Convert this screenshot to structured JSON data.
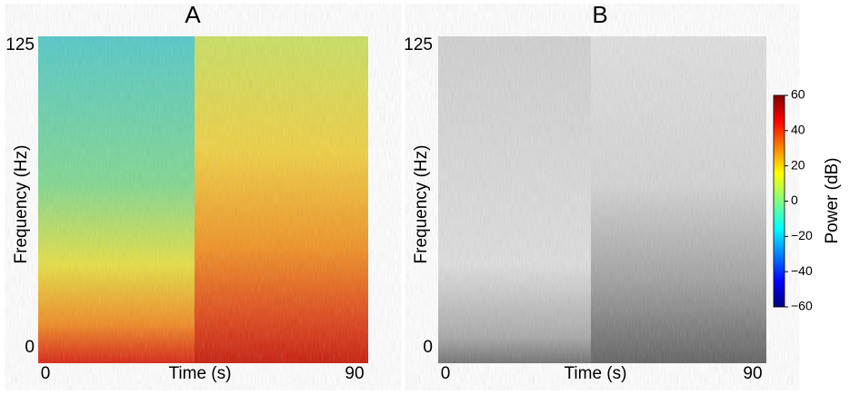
{
  "panels": [
    {
      "title": "A",
      "x_label": "Time (s)",
      "y_label": "Frequency (Hz)",
      "xlim": [
        0,
        90
      ],
      "ylim": [
        0,
        125
      ],
      "xticks": [
        0,
        90
      ],
      "yticks": [
        0,
        125
      ]
    },
    {
      "title": "B",
      "x_label": "Time (s)",
      "y_label": "Frequency (Hz)",
      "xlim": [
        0,
        90
      ],
      "ylim": [
        0,
        125
      ],
      "xticks": [
        0,
        90
      ],
      "yticks": [
        0,
        125
      ]
    }
  ],
  "colorbar": {
    "label": "Power (dB)",
    "lim": [
      -60,
      60
    ],
    "ticks": [
      60,
      40,
      20,
      0,
      {
        "value": -20,
        "label": "−20"
      },
      {
        "value": -40,
        "label": "−40"
      },
      {
        "value": -60,
        "label": "−60"
      }
    ]
  }
}
